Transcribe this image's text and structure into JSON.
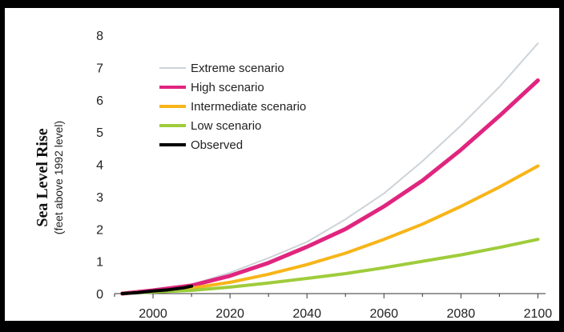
{
  "chart_data": {
    "type": "line",
    "title": "",
    "ylabel": "Sea Level Rise",
    "ylabel_sub": "(feet above 1992 level)",
    "xlabel": "",
    "xlim": [
      1990,
      2102
    ],
    "ylim": [
      0,
      8
    ],
    "x_ticks": [
      2000,
      2020,
      2040,
      2060,
      2080,
      2100
    ],
    "y_ticks": [
      0,
      1,
      2,
      3,
      4,
      5,
      6,
      7,
      8
    ],
    "grid": false,
    "legend_position": "top-left",
    "series": [
      {
        "name": "Extreme scenario",
        "color": "#cdd3d8",
        "x": [
          1992,
          2000,
          2010,
          2020,
          2030,
          2040,
          2050,
          2060,
          2070,
          2080,
          2090,
          2100
        ],
        "y": [
          0,
          0.1,
          0.28,
          0.65,
          1.1,
          1.6,
          2.3,
          3.1,
          4.1,
          5.2,
          6.4,
          7.75
        ]
      },
      {
        "name": "High scenario",
        "color": "#e0257f",
        "x": [
          1992,
          2000,
          2010,
          2020,
          2030,
          2040,
          2050,
          2060,
          2070,
          2080,
          2090,
          2100
        ],
        "y": [
          0,
          0.1,
          0.25,
          0.55,
          0.95,
          1.45,
          2.0,
          2.7,
          3.5,
          4.45,
          5.5,
          6.6
        ]
      },
      {
        "name": "Intermediate scenario",
        "color": "#f7b519",
        "x": [
          1992,
          2000,
          2010,
          2020,
          2030,
          2040,
          2050,
          2060,
          2070,
          2080,
          2090,
          2100
        ],
        "y": [
          0,
          0.07,
          0.17,
          0.35,
          0.6,
          0.9,
          1.25,
          1.68,
          2.15,
          2.7,
          3.3,
          3.95
        ]
      },
      {
        "name": "Low scenario",
        "color": "#9fcc3b",
        "x": [
          1992,
          2000,
          2010,
          2020,
          2030,
          2040,
          2050,
          2060,
          2070,
          2080,
          2090,
          2100
        ],
        "y": [
          0,
          0.05,
          0.1,
          0.2,
          0.33,
          0.47,
          0.62,
          0.8,
          1.0,
          1.2,
          1.43,
          1.68
        ]
      },
      {
        "name": "Observed",
        "color": "#000000",
        "x": [
          1992,
          1996,
          2000,
          2004,
          2008,
          2010
        ],
        "y": [
          0,
          0.03,
          0.08,
          0.12,
          0.18,
          0.23
        ]
      }
    ]
  }
}
